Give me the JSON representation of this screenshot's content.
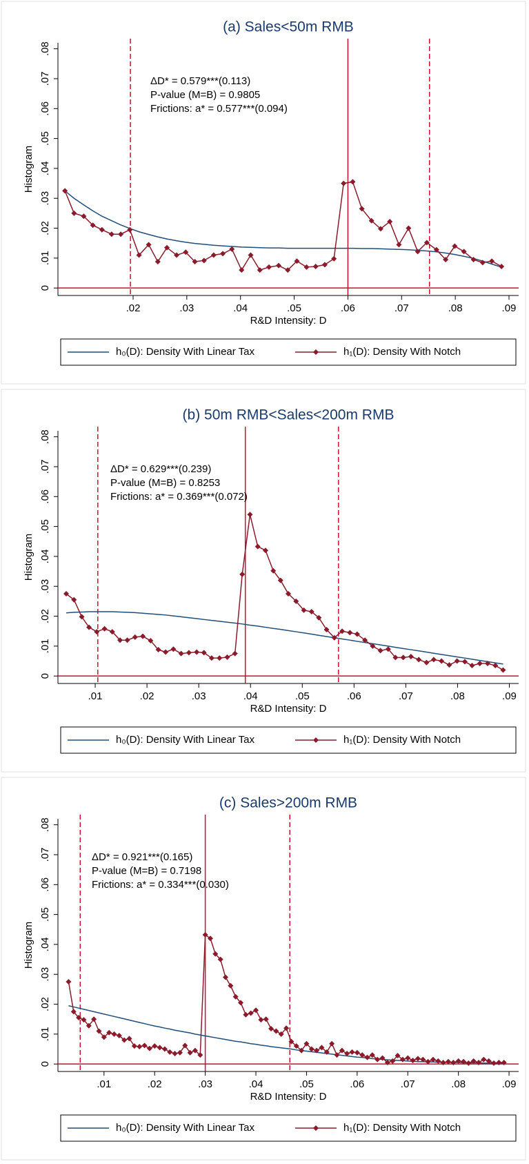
{
  "chart_data": [
    {
      "type": "line",
      "title": "(a) Sales<50m RMB",
      "xlabel": "R&D Intensity: D",
      "ylabel": "Histogram",
      "annotations": [
        "ΔD* = 0.579***(0.113)",
        "P-value (M=B) = 0.9805",
        "Frictions: a* = 0.577***(0.094)"
      ],
      "xlim": [
        0.006,
        0.0918
      ],
      "ylim": [
        -0.0025,
        0.082
      ],
      "xticks": [
        {
          "value": 0.02,
          "label": ".02"
        },
        {
          "value": 0.03,
          "label": ".03"
        },
        {
          "value": 0.04,
          "label": ".04"
        },
        {
          "value": 0.05,
          "label": ".05"
        },
        {
          "value": 0.06,
          "label": ".06"
        },
        {
          "value": 0.07,
          "label": ".07"
        },
        {
          "value": 0.08,
          "label": ".08"
        },
        {
          "value": 0.09,
          "label": ".09"
        }
      ],
      "yticks": [
        0,
        {
          "value": 0.01,
          "label": ".01"
        },
        {
          "value": 0.02,
          "label": ".02"
        },
        {
          "value": 0.03,
          "label": ".03"
        },
        {
          "value": 0.04,
          "label": ".04"
        },
        {
          "value": 0.05,
          "label": ".05"
        },
        {
          "value": 0.06,
          "label": ".06"
        },
        {
          "value": 0.07,
          "label": ".07"
        },
        {
          "value": 0.08,
          "label": ".08"
        }
      ],
      "zero_line": true,
      "line_color": "#c8102e",
      "vlines": [
        {
          "x": 0.0195,
          "style": "dashed"
        },
        {
          "x": 0.06,
          "style": "solid"
        },
        {
          "x": 0.0752,
          "style": "dashed"
        }
      ],
      "x": [
        0.0073,
        0.009,
        0.0108,
        0.0125,
        0.0142,
        0.016,
        0.0177,
        0.0194,
        0.0211,
        0.0229,
        0.0246,
        0.0263,
        0.0281,
        0.0298,
        0.0315,
        0.0332,
        0.035,
        0.0367,
        0.0384,
        0.0402,
        0.0419,
        0.0436,
        0.0453,
        0.0471,
        0.0488,
        0.0505,
        0.0523,
        0.054,
        0.0557,
        0.0574,
        0.0592,
        0.0609,
        0.0626,
        0.0644,
        0.0661,
        0.0678,
        0.0695,
        0.0713,
        0.073,
        0.0747,
        0.0765,
        0.0782,
        0.0799,
        0.0816,
        0.0834,
        0.0851,
        0.0868,
        0.0886
      ],
      "series": [
        {
          "name": "h₀(D): Density With Linear Tax",
          "color": "#1f4e79",
          "marker": "none",
          "values": [
            0.0325,
            0.03,
            0.0278,
            0.0258,
            0.024,
            0.0225,
            0.0211,
            0.0199,
            0.0188,
            0.0179,
            0.0171,
            0.0164,
            0.0158,
            0.0153,
            0.0149,
            0.0146,
            0.0143,
            0.0141,
            0.0139,
            0.0137,
            0.0136,
            0.0135,
            0.0134,
            0.0134,
            0.0133,
            0.0133,
            0.0133,
            0.0133,
            0.0133,
            0.0133,
            0.0133,
            0.0133,
            0.0132,
            0.0132,
            0.0131,
            0.013,
            0.0129,
            0.0128,
            0.0126,
            0.0124,
            0.0121,
            0.0117,
            0.0112,
            0.0106,
            0.0099,
            0.009,
            0.008,
            0.007
          ]
        },
        {
          "name": "h₁(D): Density With Notch",
          "color": "#8b1a2b",
          "marker": "diamond",
          "values": [
            0.0325,
            0.025,
            0.024,
            0.021,
            0.0195,
            0.018,
            0.018,
            0.0195,
            0.011,
            0.0145,
            0.0088,
            0.0135,
            0.011,
            0.012,
            0.0088,
            0.0092,
            0.011,
            0.0115,
            0.013,
            0.006,
            0.011,
            0.006,
            0.007,
            0.0075,
            0.006,
            0.009,
            0.007,
            0.0072,
            0.0078,
            0.0098,
            0.035,
            0.0355,
            0.0265,
            0.0225,
            0.0198,
            0.0222,
            0.0145,
            0.02,
            0.0122,
            0.0152,
            0.0128,
            0.0095,
            0.014,
            0.0122,
            0.0095,
            0.0085,
            0.009,
            0.0072
          ]
        }
      ]
    },
    {
      "type": "line",
      "title": "(b)  50m RMB<Sales<200m RMB",
      "xlabel": "R&D Intensity: D",
      "ylabel": "Histogram",
      "annotations": [
        "ΔD* = 0.629***(0.239)",
        "P-value (M=B) = 0.8253",
        "Frictions: a* = 0.369***(0.072)"
      ],
      "xlim": [
        0.0028,
        0.0918
      ],
      "ylim": [
        -0.0025,
        0.082
      ],
      "xticks": [
        {
          "value": 0.01,
          "label": ".01"
        },
        {
          "value": 0.02,
          "label": ".02"
        },
        {
          "value": 0.03,
          "label": ".03"
        },
        {
          "value": 0.04,
          "label": ".04"
        },
        {
          "value": 0.05,
          "label": ".05"
        },
        {
          "value": 0.06,
          "label": ".06"
        },
        {
          "value": 0.07,
          "label": ".07"
        },
        {
          "value": 0.08,
          "label": ".08"
        },
        {
          "value": 0.09,
          "label": ".09"
        }
      ],
      "yticks": [
        0,
        {
          "value": 0.01,
          "label": ".01"
        },
        {
          "value": 0.02,
          "label": ".02"
        },
        {
          "value": 0.03,
          "label": ".03"
        },
        {
          "value": 0.04,
          "label": ".04"
        },
        {
          "value": 0.05,
          "label": ".05"
        },
        {
          "value": 0.06,
          "label": ".06"
        },
        {
          "value": 0.07,
          "label": ".07"
        },
        {
          "value": 0.08,
          "label": ".08"
        }
      ],
      "zero_line": true,
      "line_color": "#c8102e",
      "vlines": [
        {
          "x": 0.0105,
          "style": "dashed"
        },
        {
          "x": 0.039,
          "style": "solid"
        },
        {
          "x": 0.057,
          "style": "dashed"
        }
      ],
      "x": [
        0.0044,
        0.0059,
        0.0074,
        0.0088,
        0.0103,
        0.0118,
        0.0133,
        0.0148,
        0.0162,
        0.0177,
        0.0192,
        0.0207,
        0.0222,
        0.0236,
        0.0251,
        0.0266,
        0.0281,
        0.0296,
        0.031,
        0.0325,
        0.034,
        0.0355,
        0.037,
        0.0384,
        0.0399,
        0.0414,
        0.0429,
        0.0444,
        0.0458,
        0.0473,
        0.0488,
        0.0503,
        0.0518,
        0.0532,
        0.0547,
        0.0562,
        0.0577,
        0.0592,
        0.0606,
        0.0621,
        0.0636,
        0.0651,
        0.0666,
        0.068,
        0.0695,
        0.071,
        0.0725,
        0.074,
        0.0754,
        0.0769,
        0.0784,
        0.0799,
        0.0814,
        0.0828,
        0.0843,
        0.0858,
        0.0873,
        0.0888
      ],
      "series": [
        {
          "name": "h₀(D): Density With Linear Tax",
          "color": "#1f4e79",
          "marker": "none",
          "values": [
            0.0211,
            0.0213,
            0.0214,
            0.0215,
            0.0215,
            0.0215,
            0.0215,
            0.0214,
            0.0213,
            0.0212,
            0.021,
            0.0208,
            0.0206,
            0.0204,
            0.0201,
            0.0198,
            0.0195,
            0.0192,
            0.0189,
            0.0186,
            0.0183,
            0.018,
            0.0177,
            0.0174,
            0.017,
            0.0167,
            0.0163,
            0.0159,
            0.0156,
            0.0152,
            0.0148,
            0.0144,
            0.014,
            0.0136,
            0.0132,
            0.0128,
            0.0124,
            0.012,
            0.0116,
            0.0112,
            0.0108,
            0.0104,
            0.01,
            0.0096,
            0.0092,
            0.0088,
            0.0084,
            0.008,
            0.0076,
            0.0072,
            0.0068,
            0.0064,
            0.006,
            0.0056,
            0.0052,
            0.0048,
            0.0044,
            0.004
          ]
        },
        {
          "name": "h₁(D): Density With Notch",
          "color": "#8b1a2b",
          "marker": "diamond",
          "values": [
            0.0275,
            0.0255,
            0.0198,
            0.0163,
            0.0148,
            0.0158,
            0.0148,
            0.012,
            0.012,
            0.013,
            0.0133,
            0.0118,
            0.0088,
            0.008,
            0.009,
            0.0075,
            0.0078,
            0.008,
            0.0078,
            0.006,
            0.006,
            0.0063,
            0.0075,
            0.034,
            0.054,
            0.0433,
            0.042,
            0.0352,
            0.032,
            0.0275,
            0.025,
            0.022,
            0.0215,
            0.0195,
            0.0155,
            0.0128,
            0.015,
            0.0145,
            0.014,
            0.012,
            0.01,
            0.0085,
            0.009,
            0.0062,
            0.0062,
            0.0065,
            0.0055,
            0.0045,
            0.0055,
            0.005,
            0.0037,
            0.005,
            0.0048,
            0.0035,
            0.0042,
            0.0042,
            0.0035,
            0.002
          ]
        }
      ]
    },
    {
      "type": "line",
      "title": "(c)  Sales>200m RMB",
      "xlabel": "R&D Intensity: D",
      "ylabel": "Histogram",
      "annotations": [
        "ΔD* = 0.921***(0.165)",
        "P-value (M=B) = 0.7198",
        "Frictions: a* = 0.334***(0.030)"
      ],
      "xlim": [
        0.0009,
        0.0919
      ],
      "ylim": [
        -0.0025,
        0.082
      ],
      "xticks": [
        {
          "value": 0.01,
          "label": ".01"
        },
        {
          "value": 0.02,
          "label": ".02"
        },
        {
          "value": 0.03,
          "label": ".03"
        },
        {
          "value": 0.04,
          "label": ".04"
        },
        {
          "value": 0.05,
          "label": ".05"
        },
        {
          "value": 0.06,
          "label": ".06"
        },
        {
          "value": 0.07,
          "label": ".07"
        },
        {
          "value": 0.08,
          "label": ".08"
        },
        {
          "value": 0.09,
          "label": ".09"
        }
      ],
      "yticks": [
        0,
        {
          "value": 0.01,
          "label": ".01"
        },
        {
          "value": 0.02,
          "label": ".02"
        },
        {
          "value": 0.03,
          "label": ".03"
        },
        {
          "value": 0.04,
          "label": ".04"
        },
        {
          "value": 0.05,
          "label": ".05"
        },
        {
          "value": 0.06,
          "label": ".06"
        },
        {
          "value": 0.07,
          "label": ".07"
        },
        {
          "value": 0.08,
          "label": ".08"
        }
      ],
      "zero_line": true,
      "line_color": "#c8102e",
      "vlines": [
        {
          "x": 0.0053,
          "style": "dashed"
        },
        {
          "x": 0.03,
          "style": "solid"
        },
        {
          "x": 0.0467,
          "style": "dashed"
        }
      ],
      "x": [
        0.003,
        0.004,
        0.005,
        0.006,
        0.007,
        0.008,
        0.009,
        0.01,
        0.011,
        0.012,
        0.013,
        0.014,
        0.015,
        0.016,
        0.017,
        0.018,
        0.019,
        0.02,
        0.021,
        0.022,
        0.023,
        0.024,
        0.025,
        0.026,
        0.027,
        0.028,
        0.029,
        0.03,
        0.031,
        0.032,
        0.033,
        0.034,
        0.035,
        0.036,
        0.037,
        0.038,
        0.039,
        0.04,
        0.041,
        0.042,
        0.043,
        0.044,
        0.045,
        0.046,
        0.047,
        0.048,
        0.049,
        0.05,
        0.051,
        0.052,
        0.053,
        0.054,
        0.055,
        0.056,
        0.057,
        0.058,
        0.059,
        0.06,
        0.061,
        0.062,
        0.063,
        0.064,
        0.065,
        0.066,
        0.067,
        0.068,
        0.069,
        0.07,
        0.071,
        0.072,
        0.073,
        0.074,
        0.075,
        0.076,
        0.077,
        0.078,
        0.079,
        0.08,
        0.081,
        0.082,
        0.083,
        0.084,
        0.085,
        0.086,
        0.087,
        0.088,
        0.089
      ],
      "series": [
        {
          "name": "h₀(D): Density With Linear Tax",
          "color": "#1f4e79",
          "marker": "none",
          "values": [
            0.0195,
            0.0191,
            0.0187,
            0.0183,
            0.0179,
            0.0175,
            0.0171,
            0.0167,
            0.0163,
            0.0159,
            0.0155,
            0.0151,
            0.0147,
            0.0143,
            0.0139,
            0.0135,
            0.0131,
            0.0127,
            0.0124,
            0.012,
            0.0117,
            0.0113,
            0.011,
            0.0107,
            0.0104,
            0.01,
            0.0097,
            0.0094,
            0.0091,
            0.0088,
            0.0085,
            0.0082,
            0.0079,
            0.0076,
            0.0074,
            0.0071,
            0.0068,
            0.0066,
            0.0063,
            0.0061,
            0.0058,
            0.0056,
            0.0054,
            0.0052,
            0.005,
            0.0047,
            0.0045,
            0.0043,
            0.0041,
            0.0039,
            0.0037,
            0.0035,
            0.0033,
            0.0031,
            0.0029,
            0.0027,
            0.0025,
            0.0023,
            0.0022,
            0.002,
            0.0018,
            0.0017,
            0.0015,
            0.0014,
            0.0013,
            0.0012,
            0.0011,
            0.001,
            0.0009,
            0.0008,
            0.0008,
            0.0007,
            0.0007,
            0.0006,
            0.0006,
            0.0005,
            0.0005,
            0.0005,
            0.0004,
            0.0004,
            0.0004,
            0.0004,
            0.0003,
            0.0003,
            0.0003,
            0.0003,
            0.0003
          ]
        },
        {
          "name": "h₁(D): Density With Notch",
          "color": "#8b1a2b",
          "marker": "diamond",
          "values": [
            0.0275,
            0.0175,
            0.0155,
            0.0148,
            0.0128,
            0.015,
            0.011,
            0.009,
            0.0105,
            0.01,
            0.0095,
            0.008,
            0.0085,
            0.006,
            0.0058,
            0.0062,
            0.0052,
            0.006,
            0.0055,
            0.005,
            0.004,
            0.0035,
            0.0038,
            0.0062,
            0.0038,
            0.0045,
            0.003,
            0.0432,
            0.042,
            0.0368,
            0.035,
            0.029,
            0.0262,
            0.0225,
            0.0205,
            0.0165,
            0.017,
            0.018,
            0.0148,
            0.015,
            0.0118,
            0.011,
            0.01,
            0.012,
            0.0075,
            0.006,
            0.0045,
            0.0068,
            0.005,
            0.0045,
            0.0055,
            0.004,
            0.0068,
            0.003,
            0.0045,
            0.0035,
            0.004,
            0.0038,
            0.003,
            0.0022,
            0.003,
            0.0015,
            0.002,
            0.0005,
            0.001,
            0.0028,
            0.0015,
            0.002,
            0.0012,
            0.0018,
            0.0015,
            0.0008,
            0.0015,
            0.001,
            0.0005,
            0.0008,
            0.0005,
            0.001,
            0.0008,
            0.0003,
            0.001,
            0.0005,
            0.0015,
            0.001,
            0.0003,
            0.0005,
            0.0005
          ]
        }
      ]
    }
  ]
}
